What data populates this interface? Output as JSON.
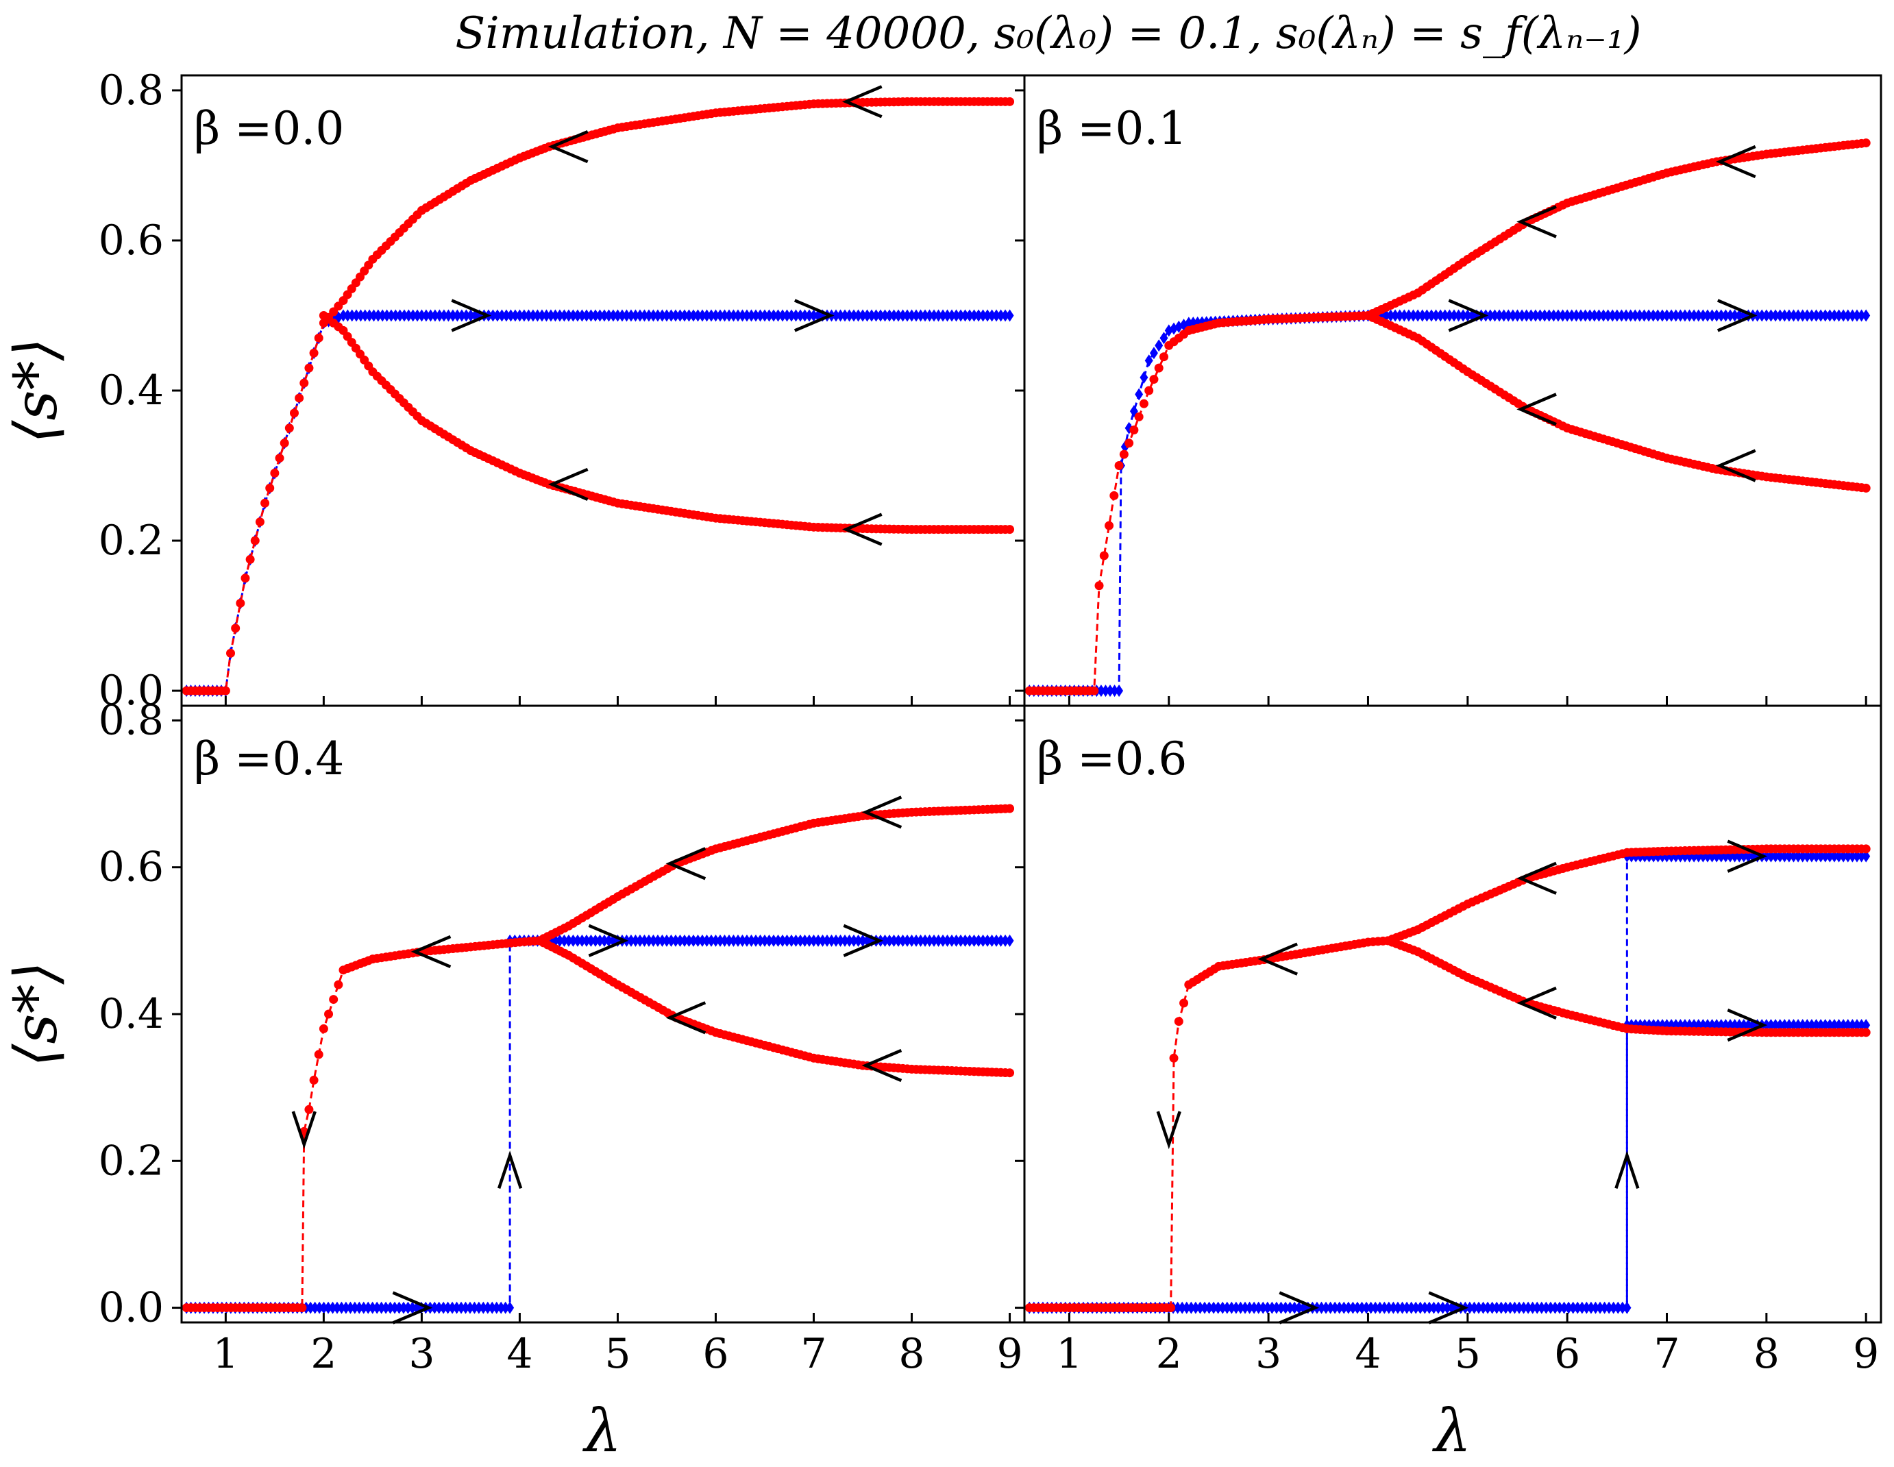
{
  "title": "Simulation, N = 40000, s₀(λ₀) = 0.1, s₀(λₙ) = s_f(λₙ₋₁)",
  "axes": {
    "xlabel": "λ",
    "ylabel": "⟨s*⟩",
    "xlim": [
      0.55,
      9.15
    ],
    "ylim": [
      -0.02,
      0.82
    ],
    "xticks": [
      "1",
      "2",
      "3",
      "4",
      "5",
      "6",
      "7",
      "8",
      "9"
    ],
    "yticks": [
      "0.0",
      "0.2",
      "0.4",
      "0.6",
      "0.8"
    ]
  },
  "colors": {
    "forward": "#0000ff",
    "backward": "#ff0000",
    "arrow": "#000000"
  },
  "chart_data": [
    {
      "type": "line",
      "panel": "top-left",
      "label": "β =0.0",
      "beta": 0.0,
      "series": [
        {
          "name": "forward",
          "color": "#0000ff",
          "marker": "diamond",
          "x": [
            0.6,
            1.0,
            1.05,
            1.2,
            1.4,
            1.6,
            1.8,
            2.0,
            2.2,
            3,
            4,
            5,
            6,
            7,
            8,
            9
          ],
          "y": [
            0.0,
            0.0,
            0.05,
            0.15,
            0.25,
            0.33,
            0.41,
            0.49,
            0.5,
            0.5,
            0.5,
            0.5,
            0.5,
            0.5,
            0.5,
            0.5
          ]
        },
        {
          "name": "backward-upper",
          "color": "#ff0000",
          "marker": "circle",
          "x": [
            9,
            8,
            7.5,
            7,
            6,
            5,
            4.3,
            4,
            3.5,
            3,
            2.5,
            2.2,
            2.0,
            1.8,
            1.6,
            1.4,
            1.2,
            1.05,
            1.0,
            0.6
          ],
          "y": [
            0.785,
            0.785,
            0.784,
            0.782,
            0.77,
            0.75,
            0.725,
            0.71,
            0.68,
            0.64,
            0.575,
            0.52,
            0.49,
            0.41,
            0.33,
            0.25,
            0.15,
            0.05,
            0.0,
            0.0
          ]
        },
        {
          "name": "backward-lower",
          "color": "#ff0000",
          "marker": "circle",
          "x": [
            9,
            8,
            7.5,
            7,
            6,
            5,
            4.3,
            4,
            3.5,
            3,
            2.5,
            2.2,
            2.0
          ],
          "y": [
            0.215,
            0.215,
            0.216,
            0.218,
            0.23,
            0.25,
            0.275,
            0.29,
            0.32,
            0.36,
            0.425,
            0.48,
            0.5
          ]
        }
      ],
      "arrows": [
        {
          "x": 4.4,
          "y": 0.725,
          "dir": "left"
        },
        {
          "x": 7.4,
          "y": 0.785,
          "dir": "left"
        },
        {
          "x": 3.6,
          "y": 0.5,
          "dir": "right"
        },
        {
          "x": 7.1,
          "y": 0.5,
          "dir": "right"
        },
        {
          "x": 4.4,
          "y": 0.275,
          "dir": "left"
        },
        {
          "x": 7.4,
          "y": 0.215,
          "dir": "left"
        }
      ]
    },
    {
      "type": "line",
      "panel": "top-right",
      "label": "β =0.1",
      "beta": 0.1,
      "series": [
        {
          "name": "forward",
          "color": "#0000ff",
          "marker": "diamond",
          "x": [
            0.6,
            1.5,
            1.52,
            1.6,
            1.8,
            2.0,
            2.2,
            3,
            4,
            5,
            6,
            7,
            8,
            9
          ],
          "y": [
            0.0,
            0.0,
            0.3,
            0.35,
            0.44,
            0.48,
            0.49,
            0.495,
            0.5,
            0.5,
            0.5,
            0.5,
            0.5,
            0.5
          ]
        },
        {
          "name": "backward-upper",
          "color": "#ff0000",
          "marker": "circle",
          "x": [
            9,
            8,
            7.5,
            7,
            6,
            5.6,
            5,
            4.5,
            4,
            3,
            2.5,
            2.2,
            2.0,
            1.8,
            1.6,
            1.5,
            1.4,
            1.3,
            1.25,
            0.6
          ],
          "y": [
            0.73,
            0.715,
            0.705,
            0.69,
            0.65,
            0.625,
            0.575,
            0.53,
            0.5,
            0.495,
            0.49,
            0.48,
            0.46,
            0.4,
            0.33,
            0.3,
            0.22,
            0.14,
            0.0,
            0.0
          ]
        },
        {
          "name": "backward-lower",
          "color": "#ff0000",
          "marker": "circle",
          "x": [
            9,
            8,
            7.5,
            7,
            6,
            5.6,
            5,
            4.5,
            4
          ],
          "y": [
            0.27,
            0.285,
            0.295,
            0.31,
            0.35,
            0.375,
            0.425,
            0.47,
            0.5
          ]
        }
      ],
      "arrows": [
        {
          "x": 5.6,
          "y": 0.625,
          "dir": "left"
        },
        {
          "x": 7.6,
          "y": 0.705,
          "dir": "left"
        },
        {
          "x": 5.1,
          "y": 0.5,
          "dir": "right"
        },
        {
          "x": 7.8,
          "y": 0.5,
          "dir": "right"
        },
        {
          "x": 5.6,
          "y": 0.375,
          "dir": "left"
        },
        {
          "x": 7.6,
          "y": 0.3,
          "dir": "left"
        }
      ]
    },
    {
      "type": "line",
      "panel": "bottom-left",
      "label": "β =0.4",
      "beta": 0.4,
      "series": [
        {
          "name": "forward",
          "color": "#0000ff",
          "marker": "diamond",
          "x": [
            0.6,
            3.9,
            3.9,
            4,
            5,
            6,
            7,
            8,
            9
          ],
          "y": [
            0.0,
            0.0,
            0.5,
            0.5,
            0.5,
            0.5,
            0.5,
            0.5,
            0.5
          ]
        },
        {
          "name": "backward-upper",
          "color": "#ff0000",
          "marker": "circle",
          "x": [
            9,
            8,
            7.5,
            7,
            6,
            5.6,
            5,
            4.5,
            4.2,
            4,
            3,
            2.5,
            2.2,
            2.0,
            1.9,
            1.85,
            1.8,
            1.78,
            0.6
          ],
          "y": [
            0.68,
            0.675,
            0.67,
            0.66,
            0.625,
            0.605,
            0.56,
            0.52,
            0.5,
            0.498,
            0.485,
            0.475,
            0.46,
            0.38,
            0.31,
            0.27,
            0.24,
            0.0,
            0.0
          ]
        },
        {
          "name": "backward-lower",
          "color": "#ff0000",
          "marker": "circle",
          "x": [
            9,
            8,
            7.5,
            7,
            6,
            5.6,
            5,
            4.5,
            4.2
          ],
          "y": [
            0.32,
            0.325,
            0.33,
            0.34,
            0.375,
            0.395,
            0.44,
            0.48,
            0.5
          ]
        }
      ],
      "arrows": [
        {
          "x": 5.6,
          "y": 0.605,
          "dir": "left"
        },
        {
          "x": 7.6,
          "y": 0.675,
          "dir": "left"
        },
        {
          "x": 3.0,
          "y": 0.485,
          "dir": "left"
        },
        {
          "x": 5.0,
          "y": 0.5,
          "dir": "right"
        },
        {
          "x": 7.6,
          "y": 0.5,
          "dir": "right"
        },
        {
          "x": 5.6,
          "y": 0.395,
          "dir": "left"
        },
        {
          "x": 7.6,
          "y": 0.33,
          "dir": "left"
        },
        {
          "x": 3.0,
          "y": 0.0,
          "dir": "right"
        },
        {
          "x": 1.8,
          "y": 0.23,
          "dir": "down"
        },
        {
          "x": 3.9,
          "y": 0.2,
          "dir": "up"
        }
      ]
    },
    {
      "type": "line",
      "panel": "bottom-right",
      "label": "β =0.6",
      "beta": 0.6,
      "series": [
        {
          "name": "forward-low",
          "color": "#0000ff",
          "marker": "diamond",
          "x": [
            0.6,
            6.6,
            6.6,
            7,
            8,
            9
          ],
          "y": [
            0.0,
            0.0,
            0.385,
            0.385,
            0.385,
            0.385
          ]
        },
        {
          "name": "forward-high",
          "color": "#0000ff",
          "marker": "diamond",
          "x": [
            6.6,
            6.6,
            7,
            8,
            9
          ],
          "y": [
            0.0,
            0.615,
            0.615,
            0.615,
            0.615
          ]
        },
        {
          "name": "backward-upper",
          "color": "#ff0000",
          "marker": "circle",
          "x": [
            9,
            8,
            7,
            6.6,
            6,
            5.6,
            5,
            4.5,
            4.2,
            4,
            3,
            2.5,
            2.2,
            2.1,
            2.05,
            2.02,
            0.6
          ],
          "y": [
            0.625,
            0.625,
            0.622,
            0.62,
            0.6,
            0.585,
            0.55,
            0.515,
            0.5,
            0.498,
            0.475,
            0.465,
            0.44,
            0.39,
            0.34,
            0.0,
            0.0
          ]
        },
        {
          "name": "backward-lower",
          "color": "#ff0000",
          "marker": "circle",
          "x": [
            9,
            8,
            7,
            6.6,
            6,
            5.6,
            5,
            4.5,
            4.2
          ],
          "y": [
            0.375,
            0.375,
            0.377,
            0.38,
            0.4,
            0.415,
            0.45,
            0.485,
            0.5
          ]
        }
      ],
      "arrows": [
        {
          "x": 3.0,
          "y": 0.475,
          "dir": "left"
        },
        {
          "x": 5.6,
          "y": 0.585,
          "dir": "left"
        },
        {
          "x": 5.6,
          "y": 0.415,
          "dir": "left"
        },
        {
          "x": 7.9,
          "y": 0.615,
          "dir": "right"
        },
        {
          "x": 7.9,
          "y": 0.385,
          "dir": "right"
        },
        {
          "x": 3.4,
          "y": 0.0,
          "dir": "right"
        },
        {
          "x": 4.9,
          "y": 0.0,
          "dir": "right"
        },
        {
          "x": 2.0,
          "y": 0.23,
          "dir": "down"
        },
        {
          "x": 6.6,
          "y": 0.2,
          "dir": "up"
        }
      ]
    }
  ]
}
